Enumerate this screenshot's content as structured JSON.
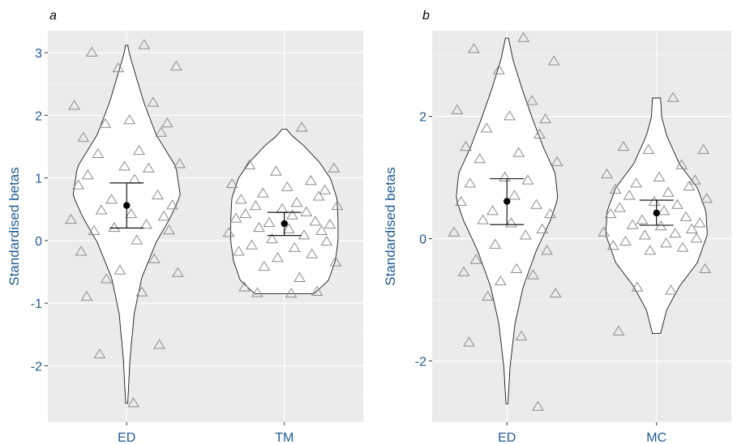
{
  "chart_data": [
    {
      "panel": "a",
      "type": "violin",
      "ylabel": "Standardised betas",
      "ylim": [
        -2.9,
        3.35
      ],
      "yticks": [
        -2,
        -1,
        0,
        1,
        2,
        3
      ],
      "categories": [
        "ED",
        "TM"
      ],
      "groups": [
        {
          "name": "ED",
          "violin_ymin": -2.6,
          "violin_ymax": 3.12,
          "mean": 0.56,
          "ci_low": 0.2,
          "ci_high": 0.92,
          "points": [
            3.12,
            3.0,
            2.78,
            2.75,
            2.2,
            2.15,
            1.92,
            1.87,
            1.86,
            1.72,
            1.64,
            1.43,
            1.38,
            1.22,
            1.18,
            1.15,
            1.04,
            0.97,
            0.88,
            0.72,
            0.65,
            0.56,
            0.48,
            0.42,
            0.38,
            0.33,
            0.25,
            0.2,
            0.16,
            0.15,
            0.0,
            -0.18,
            -0.3,
            -0.48,
            -0.52,
            -0.62,
            -0.83,
            -0.9,
            -1.67,
            -1.82,
            -2.6
          ]
        },
        {
          "name": "TM",
          "violin_ymin": -0.85,
          "violin_ymax": 1.78,
          "mean": 0.27,
          "ci_low": 0.08,
          "ci_high": 0.45,
          "points": [
            1.8,
            1.2,
            1.15,
            1.1,
            0.95,
            0.9,
            0.85,
            0.8,
            0.75,
            0.7,
            0.65,
            0.6,
            0.55,
            0.55,
            0.5,
            0.45,
            0.42,
            0.4,
            0.35,
            0.3,
            0.28,
            0.25,
            0.2,
            0.18,
            0.15,
            0.12,
            0.08,
            0.02,
            -0.02,
            -0.08,
            -0.12,
            -0.18,
            -0.22,
            -0.28,
            -0.35,
            -0.42,
            -0.6,
            -0.75,
            -0.82,
            -0.84,
            -0.85
          ]
        }
      ]
    },
    {
      "panel": "b",
      "type": "violin",
      "ylabel": "Standardised betas",
      "ylim": [
        -3.0,
        3.4
      ],
      "yticks": [
        -2,
        0,
        2
      ],
      "categories": [
        "ED",
        "MC"
      ],
      "groups": [
        {
          "name": "ED",
          "violin_ymin": -2.7,
          "violin_ymax": 3.28,
          "mean": 0.61,
          "ci_low": 0.23,
          "ci_high": 0.98,
          "points": [
            3.28,
            3.1,
            2.9,
            2.75,
            2.25,
            2.1,
            2.0,
            1.95,
            1.8,
            1.7,
            1.5,
            1.4,
            1.3,
            1.25,
            1.0,
            0.95,
            0.9,
            0.7,
            0.6,
            0.55,
            0.45,
            0.4,
            0.3,
            0.25,
            0.15,
            0.1,
            0.05,
            -0.1,
            -0.2,
            -0.35,
            -0.5,
            -0.55,
            -0.6,
            -0.7,
            -0.9,
            -0.95,
            -1.6,
            -1.7,
            -2.75
          ]
        },
        {
          "name": "MC",
          "violin_ymin": -1.55,
          "violin_ymax": 2.3,
          "mean": 0.42,
          "ci_low": 0.22,
          "ci_high": 0.63,
          "points": [
            2.3,
            1.5,
            1.45,
            1.45,
            1.2,
            1.05,
            1.0,
            0.95,
            0.9,
            0.85,
            0.8,
            0.75,
            0.7,
            0.65,
            0.6,
            0.55,
            0.5,
            0.45,
            0.4,
            0.35,
            0.3,
            0.25,
            0.22,
            0.2,
            0.15,
            0.1,
            0.08,
            0.05,
            0.0,
            -0.05,
            -0.08,
            -0.12,
            -0.15,
            -0.2,
            -0.5,
            -0.8,
            -0.85,
            -1.52
          ]
        }
      ]
    }
  ]
}
